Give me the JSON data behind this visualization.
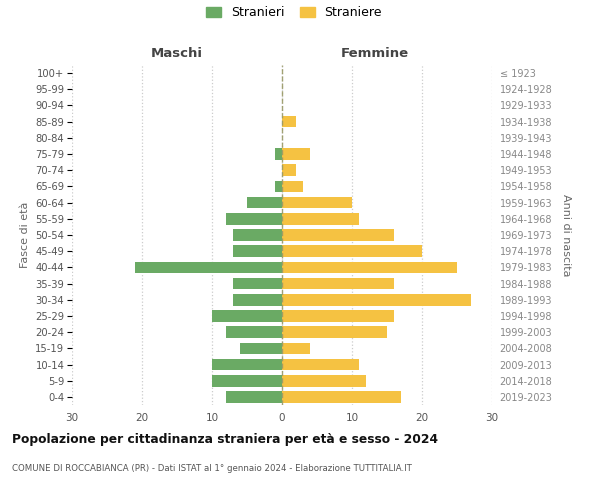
{
  "age_groups": [
    "100+",
    "95-99",
    "90-94",
    "85-89",
    "80-84",
    "75-79",
    "70-74",
    "65-69",
    "60-64",
    "55-59",
    "50-54",
    "45-49",
    "40-44",
    "35-39",
    "30-34",
    "25-29",
    "20-24",
    "15-19",
    "10-14",
    "5-9",
    "0-4"
  ],
  "birth_years": [
    "≤ 1923",
    "1924-1928",
    "1929-1933",
    "1934-1938",
    "1939-1943",
    "1944-1948",
    "1949-1953",
    "1954-1958",
    "1959-1963",
    "1964-1968",
    "1969-1973",
    "1974-1978",
    "1979-1983",
    "1984-1988",
    "1989-1993",
    "1994-1998",
    "1999-2003",
    "2004-2008",
    "2009-2013",
    "2014-2018",
    "2019-2023"
  ],
  "maschi": [
    0,
    0,
    0,
    0,
    0,
    1,
    0,
    1,
    5,
    8,
    7,
    7,
    21,
    7,
    7,
    10,
    8,
    6,
    10,
    10,
    8
  ],
  "femmine": [
    0,
    0,
    0,
    2,
    0,
    4,
    2,
    3,
    10,
    11,
    16,
    20,
    25,
    16,
    27,
    16,
    15,
    4,
    11,
    12,
    17
  ],
  "male_color": "#6aaa64",
  "female_color": "#f5c242",
  "background_color": "#ffffff",
  "grid_color": "#cccccc",
  "title": "Popolazione per cittadinanza straniera per età e sesso - 2024",
  "subtitle": "COMUNE DI ROCCABIANCA (PR) - Dati ISTAT al 1° gennaio 2024 - Elaborazione TUTTITALIA.IT",
  "legend_maschi": "Stranieri",
  "legend_femmine": "Straniere",
  "header_left": "Maschi",
  "header_right": "Femmine",
  "ylabel_left": "Fasce di età",
  "ylabel_right": "Anni di nascita",
  "xlim": 30
}
